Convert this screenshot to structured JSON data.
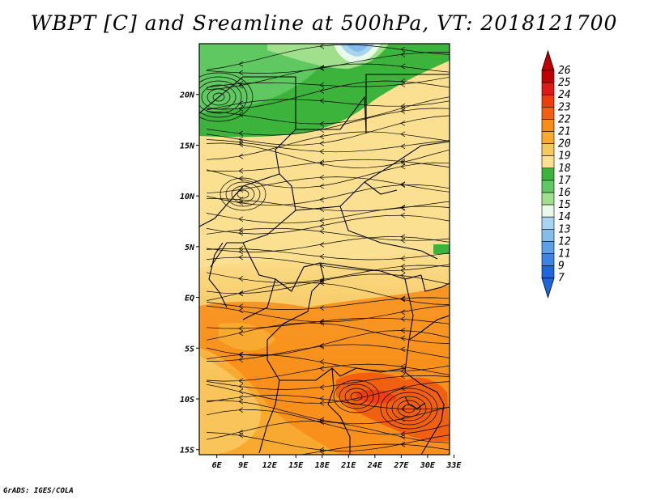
{
  "title": "WBPT [C] and Sreamline at 500hPa, VT: 2018121700",
  "credit": "GrADS: IGES/COLA",
  "map": {
    "lon_labels": [
      "6E",
      "9E",
      "12E",
      "15E",
      "18E",
      "21E",
      "24E",
      "27E",
      "30E",
      "33E"
    ],
    "lat_labels": [
      "20N",
      "15N",
      "10N",
      "5N",
      "EQ",
      "5S",
      "10S",
      "15S"
    ],
    "extent": {
      "lon_min": 4,
      "lon_max": 32.5,
      "lat_min": -15.5,
      "lat_max": 25
    },
    "field": "Wet-bulb potential temperature (shaded) with streamlines",
    "level": "500hPa",
    "valid_time": "2018121700"
  },
  "colorbar": {
    "labels": [
      "26",
      "25",
      "24",
      "23",
      "22",
      "21",
      "20",
      "19",
      "18",
      "17",
      "16",
      "15",
      "14",
      "13",
      "12",
      "11",
      "9",
      "7"
    ],
    "colors": [
      "#c00000",
      "#e01818",
      "#f03c0c",
      "#f06010",
      "#f88c18",
      "#f8aa30",
      "#f8c860",
      "#fae090",
      "#3cb43c",
      "#60c860",
      "#a0e08c",
      "#e8fae8",
      "#a8d4f0",
      "#84bcec",
      "#5ca0e8",
      "#3a84e4",
      "#1e66dc"
    ],
    "top_arrow_color": "#c00000",
    "bottom_arrow_color": "#1e66dc"
  }
}
